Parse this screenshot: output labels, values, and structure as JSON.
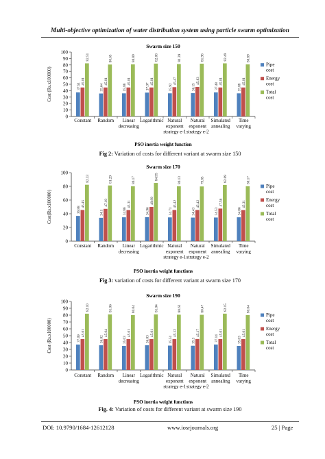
{
  "page": {
    "header": "Multi-objective optimization of water distribution system using particle swarm optimization",
    "footer_doi": "DOI: 10.9790/1684-12612128",
    "footer_site": "www.iosrjournals.org",
    "footer_page": "25 | Page"
  },
  "figures": [
    {
      "label": "Fig 2:",
      "caption": "Variation of costs for different variant at swarm size 150"
    },
    {
      "label": "Fig 3:",
      "caption": "variation of costs for different variant at swarm size 170"
    },
    {
      "label": "Fig. 4:",
      "caption": "Variation of costs for different variant at swarm size 190"
    }
  ],
  "colors": {
    "pipe": "#4f81bd",
    "energy": "#c0504d",
    "total": "#9bbb59"
  },
  "chart_data": [
    {
      "type": "bar",
      "title": "Swarm size 150",
      "xlabel": "PSO inertia weight function",
      "ylabel": "Cost (Rs.x100000)",
      "ylim": [
        0,
        100
      ],
      "yticks": [
        "0",
        "10",
        "20",
        "30",
        "40",
        "50",
        "60",
        "70",
        "80",
        "90",
        "100"
      ],
      "categories": [
        [
          "Constant"
        ],
        [
          "Random"
        ],
        [
          "Linear",
          "decreasing"
        ],
        [
          "Logarithmic"
        ],
        [
          "Natural",
          "exponent",
          "strategy e-1"
        ],
        [
          "Natural",
          "exponent",
          "strategy e-2"
        ],
        [
          "Simulated",
          "annealing"
        ],
        [
          "Time",
          "varying"
        ]
      ],
      "legend": [
        "Pipe cost",
        "Energy cost",
        "Total cost"
      ],
      "legend_position": "right",
      "series": [
        {
          "name": "Pipe cost",
          "values": [
            37.51,
            35.64,
            35.88,
            37.07,
            35.92,
            36.15,
            37.48,
            35.88
          ],
          "labels": [
            "37.51",
            "35.64",
            "35.88",
            "37.07",
            "35.92",
            "36.15",
            "37.48",
            "35.88"
          ]
        },
        {
          "name": "Energy cost",
          "values": [
            45.01,
            45.01,
            45.01,
            45.01,
            45.47,
            45.83,
            45.01,
            45.01
          ],
          "labels": [
            "45.01",
            "45.01",
            "45.01",
            "45.01",
            "45.47",
            "45.83",
            "45.01",
            "45.01"
          ]
        },
        {
          "name": "Total cost",
          "values": [
            82.51,
            80.65,
            80.89,
            82.08,
            81.39,
            81.98,
            82.49,
            80.89
          ],
          "labels": [
            "82.51",
            "80.65",
            "80.89",
            "82.08",
            "81.39",
            "81.98",
            "82.49",
            "80.89"
          ]
        }
      ]
    },
    {
      "type": "bar",
      "title": "Swarm size 170",
      "xlabel": "PSO inertia weight functions",
      "ylabel": "Cost(Rs.x100000)",
      "ylim": [
        0,
        100
      ],
      "yticks": [
        "0",
        "20",
        "40",
        "60",
        "80",
        "100"
      ],
      "categories": [
        [
          "Constant"
        ],
        [
          "Random"
        ],
        [
          "Linear",
          "decreasing"
        ],
        [
          "Logarithmic"
        ],
        [
          "Natural",
          "exponent",
          "strategy e-1"
        ],
        [
          "Natural",
          "exponent",
          "strategy e-2"
        ],
        [
          "Simulated",
          "annealing"
        ],
        [
          "Time",
          "varying"
        ]
      ],
      "legend": [
        "Pipe cost",
        "Energy cost",
        "Total cost"
      ],
      "legend_position": "right",
      "series": [
        {
          "name": "Pipe cost",
          "values": [
            36.88,
            34.1,
            34.86,
            34.96,
            34.71,
            34.43,
            34.53,
            34.86
          ],
          "labels": [
            "36.88",
            "34.1",
            "34.86",
            "34.96",
            "34.71",
            "34.43",
            "34.53",
            "34.86"
          ]
        },
        {
          "name": "Energy cost",
          "values": [
            45.45,
            47.19,
            45.31,
            49.99,
            45.42,
            45.42,
            47.56,
            45.31
          ],
          "labels": [
            "45.45",
            "47.19",
            "45.31",
            "49.99",
            "45.42",
            "45.42",
            "47.56",
            "45.31"
          ]
        },
        {
          "name": "Total cost",
          "values": [
            82.33,
            81.29,
            80.17,
            84.95,
            80.13,
            79.85,
            82.09,
            80.17
          ],
          "labels": [
            "82.33",
            "81.29",
            "80.17",
            "84.95",
            "80.13",
            "79.85",
            "82.09",
            "80.17"
          ]
        }
      ]
    },
    {
      "type": "bar",
      "title": "Swarm size 190",
      "xlabel": "PSO inertia weight functions",
      "ylabel": "Cost (Rs.x100000)",
      "ylim": [
        0,
        100
      ],
      "yticks": [
        "0",
        "10",
        "20",
        "30",
        "40",
        "50",
        "60",
        "70",
        "80",
        "90",
        "100"
      ],
      "categories": [
        [
          "Constant"
        ],
        [
          "Random"
        ],
        [
          "Linear",
          "decreasing"
        ],
        [
          "Logarithmic"
        ],
        [
          "Natural",
          "exponent",
          "strategy e-1"
        ],
        [
          "Natural",
          "exponent",
          "strategy e-2"
        ],
        [
          "Simulated",
          "annealing"
        ],
        [
          "Time",
          "varying"
        ]
      ],
      "legend": [
        "Pipe cost",
        "Energy cost",
        "Total cost"
      ],
      "legend_position": "right",
      "series": [
        {
          "name": "Pipe cost",
          "values": [
            37.09,
            36.02,
            35.03,
            36.03,
            35.51,
            35.3,
            37.14,
            35.03
          ],
          "labels": [
            "37.09",
            "36.02",
            "35.03",
            "36.03",
            "35.51",
            "35.3",
            "37.14",
            "35.03"
          ]
        },
        {
          "name": "Energy cost",
          "values": [
            45.01,
            45.04,
            45.01,
            45.01,
            45.12,
            45.17,
            45.01,
            45.01
          ],
          "labels": [
            "45.01",
            "45.04",
            "45.01",
            "45.01",
            "45.12",
            "45.17",
            "45.01",
            "45.01"
          ]
        },
        {
          "name": "Total cost",
          "values": [
            82.1,
            81.06,
            80.04,
            81.04,
            80.63,
            80.47,
            82.15,
            80.04
          ],
          "labels": [
            "82.10",
            "81.06",
            "80.04",
            "81.04",
            "80.63",
            "80.47",
            "82.15",
            "80.04"
          ]
        }
      ]
    }
  ]
}
